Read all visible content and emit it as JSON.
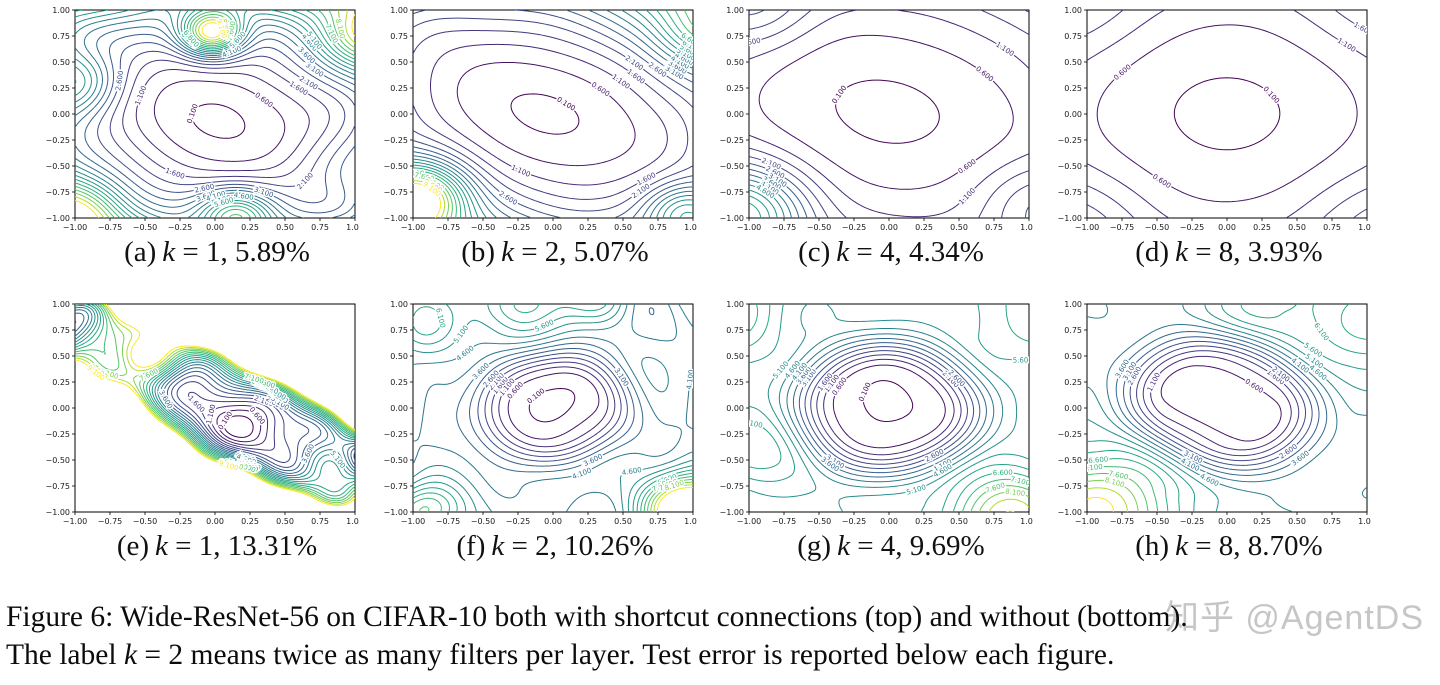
{
  "figure_caption": {
    "line1": "Figure 6: Wide-ResNet-56 on CIFAR-10 both with shortcut connections (top) and without (bottom).",
    "line2_pre": "The label ",
    "k_symbol": "k",
    "line2_post": " = 2 means twice as many filters per layer. Test error is reported below each figure."
  },
  "watermark": "知乎 @AgentDS",
  "chart_data": {
    "type": "contour",
    "rows": 2,
    "cols": 4,
    "x_range": [
      -1,
      1
    ],
    "y_range": [
      -1,
      1
    ],
    "x_ticks": [
      "−1.00",
      "−0.75",
      "−0.50",
      "−0.25",
      "0.00",
      "0.25",
      "0.50",
      "0.75",
      "1.00"
    ],
    "y_ticks": [
      "−1.00",
      "−0.75",
      "−0.50",
      "−0.25",
      "0.00",
      "0.25",
      "0.50",
      "0.75",
      "1.00"
    ],
    "levels": [
      0.1,
      0.6,
      1.1,
      1.6,
      2.1,
      2.6,
      3.1,
      3.6,
      4.1,
      4.6,
      5.1,
      5.6,
      6.1,
      6.6,
      7.1,
      7.6,
      8.1,
      8.6,
      9.1
    ],
    "colormap": "viridis",
    "grid": false,
    "panels": [
      {
        "id": "a",
        "label": "(a)",
        "k_symbol": "k",
        "caption_rest": " = 1, 5.89%",
        "k": 1,
        "test_error": "5.89%",
        "group": "with shortcut connections",
        "render": {
          "seed": 11,
          "theta": -25,
          "cx": 0.02,
          "cy": -0.05,
          "ax": 0.62,
          "by": 0.48,
          "scale": 1.0,
          "namp": 0.55,
          "nfreq": 5.5,
          "nfloor": 0.08,
          "nedge": 1.4,
          "bg": null,
          "bgBlend": null,
          "bumps": [
            [
              -0.02,
              0.78,
              7,
              0.22
            ],
            [
              0.15,
              -0.98,
              4,
              0.25
            ],
            [
              -1.0,
              0.3,
              3,
              0.3
            ],
            [
              1.05,
              0.75,
              2.2,
              0.3
            ],
            [
              -0.95,
              -0.9,
              2.5,
              0.3
            ]
          ]
        }
      },
      {
        "id": "b",
        "label": "(b)",
        "k_symbol": "k",
        "caption_rest": " = 2, 5.07%",
        "k": 2,
        "test_error": "5.07%",
        "group": "with shortcut connections",
        "render": {
          "seed": 22,
          "theta": -30,
          "cx": -0.05,
          "cy": 0.0,
          "ax": 0.8,
          "by": 0.5,
          "scale": 0.85,
          "namp": 0.2,
          "nfreq": 5,
          "nfloor": 0.05,
          "nedge": 0.9,
          "bg": null,
          "bgBlend": null,
          "bumps": [
            [
              -0.95,
              -0.8,
              6,
              0.33
            ],
            [
              0.95,
              -0.95,
              3.5,
              0.28
            ],
            [
              1.05,
              0.8,
              2,
              0.33
            ]
          ]
        }
      },
      {
        "id": "c",
        "label": "(c)",
        "k_symbol": "k",
        "caption_rest": " = 4, 4.34%",
        "k": 4,
        "test_error": "4.34%",
        "group": "with shortcut connections",
        "render": {
          "seed": 33,
          "theta": -20,
          "cx": -0.02,
          "cy": 0.02,
          "ax": 1.05,
          "by": 0.8,
          "scale": 0.75,
          "namp": 0.09,
          "nfreq": 4,
          "nfloor": 0.05,
          "nedge": 0.5,
          "bg": null,
          "bgBlend": null,
          "bumps": [
            [
              -1.05,
              -0.95,
              4.5,
              0.45
            ],
            [
              1.05,
              -0.85,
              1.2,
              0.4
            ],
            [
              -0.95,
              1.05,
              1.3,
              0.4
            ]
          ]
        }
      },
      {
        "id": "d",
        "label": "(d)",
        "k_symbol": "k",
        "caption_rest": " = 8, 3.93%",
        "k": 8,
        "test_error": "3.93%",
        "group": "with shortcut connections",
        "render": {
          "seed": 44,
          "theta": 0,
          "cx": 0.0,
          "cy": 0.0,
          "ax": 1.15,
          "by": 1.05,
          "scale": 0.9,
          "namp": 0.06,
          "nfreq": 3.5,
          "nfloor": 0.05,
          "nedge": 0.3,
          "bg": null,
          "bgBlend": null,
          "bumps": [
            [
              -1.05,
              -1.05,
              0.9,
              0.5
            ],
            [
              1.05,
              -1.05,
              0.8,
              0.5
            ],
            [
              -1.05,
              1.05,
              0.6,
              0.5
            ],
            [
              1.05,
              1.05,
              0.5,
              0.5
            ]
          ]
        }
      },
      {
        "id": "e",
        "label": "(e)",
        "k_symbol": "k",
        "caption_rest": " = 1, 13.31%",
        "k": 1,
        "test_error": "13.31%",
        "group": "without shortcut connections",
        "render": {
          "seed": 55,
          "theta": -33,
          "cx": 0.0,
          "cy": 0.0,
          "ax": 0.5,
          "by": 0.11,
          "scale": 0.55,
          "namp": 2.6,
          "nfreq": 8,
          "nfloor": 0.5,
          "nedge": 1.2,
          "bg": null,
          "bgBlend": null,
          "bumps": [
            [
              -0.85,
              0,
              9,
              0.5
            ],
            [
              -0.55,
              -0.62,
              7,
              0.3
            ],
            [
              -0.5,
              0.5,
              6,
              0.24
            ],
            [
              0.15,
              0.92,
              4,
              0.3
            ],
            [
              0.85,
              -0.85,
              5,
              0.3
            ],
            [
              0.9,
              0.85,
              4,
              0.3
            ]
          ]
        }
      },
      {
        "id": "f",
        "label": "(f)",
        "k_symbol": "k",
        "caption_rest": " = 2, 10.26%",
        "k": 2,
        "test_error": "10.26%",
        "group": "without shortcut connections",
        "render": {
          "seed": 66,
          "theta": -15,
          "cx": 0.0,
          "cy": 0.0,
          "ax": 0.42,
          "by": 0.38,
          "scale": 0.9,
          "namp": 1.1,
          "nfreq": 6,
          "nfloor": 0.45,
          "nedge": 0.7,
          "bg": 4.3,
          "bgBlend": [
            0.3,
            0.85
          ],
          "bumps": [
            [
              0.95,
              -0.95,
              7,
              0.3
            ],
            [
              -0.95,
              -0.98,
              3,
              0.25
            ],
            [
              -0.2,
              1.05,
              2.5,
              0.3
            ],
            [
              0.35,
              1.05,
              2,
              0.25
            ],
            [
              -1.0,
              0.8,
              2,
              0.3
            ]
          ]
        }
      },
      {
        "id": "g",
        "label": "(g)",
        "k_symbol": "k",
        "caption_rest": " = 4, 9.69%",
        "k": 4,
        "test_error": "9.69%",
        "group": "without shortcut connections",
        "render": {
          "seed": 77,
          "theta": -10,
          "cx": -0.02,
          "cy": 0.0,
          "ax": 0.5,
          "by": 0.42,
          "scale": 0.75,
          "namp": 0.8,
          "nfreq": 5,
          "nfloor": 0.4,
          "nedge": 0.5,
          "bg": 5.0,
          "bgBlend": [
            0.35,
            0.95
          ],
          "bumps": [
            [
              0.85,
              -1.05,
              4,
              0.45
            ],
            [
              1.05,
              0.9,
              2,
              0.4
            ],
            [
              -1.05,
              0.9,
              2,
              0.4
            ],
            [
              -1.05,
              -0.3,
              1.5,
              0.4
            ]
          ]
        }
      },
      {
        "id": "h",
        "label": "(h)",
        "k_symbol": "k",
        "caption_rest": " = 8, 8.70%",
        "k": 8,
        "test_error": "8.70%",
        "group": "without shortcut connections",
        "render": {
          "seed": 88,
          "theta": -35,
          "cx": -0.05,
          "cy": 0.05,
          "ax": 0.5,
          "by": 0.28,
          "scale": 0.55,
          "namp": 0.5,
          "nfreq": 4.5,
          "nfloor": 0.35,
          "nedge": 0.45,
          "bg": 4.5,
          "bgBlend": [
            0.4,
            1.0
          ],
          "bumps": [
            [
              -0.9,
              -1.0,
              4.5,
              0.6
            ],
            [
              1.05,
              0.85,
              2.5,
              0.5
            ],
            [
              0.2,
              1.05,
              1.5,
              0.4
            ]
          ]
        }
      }
    ]
  }
}
